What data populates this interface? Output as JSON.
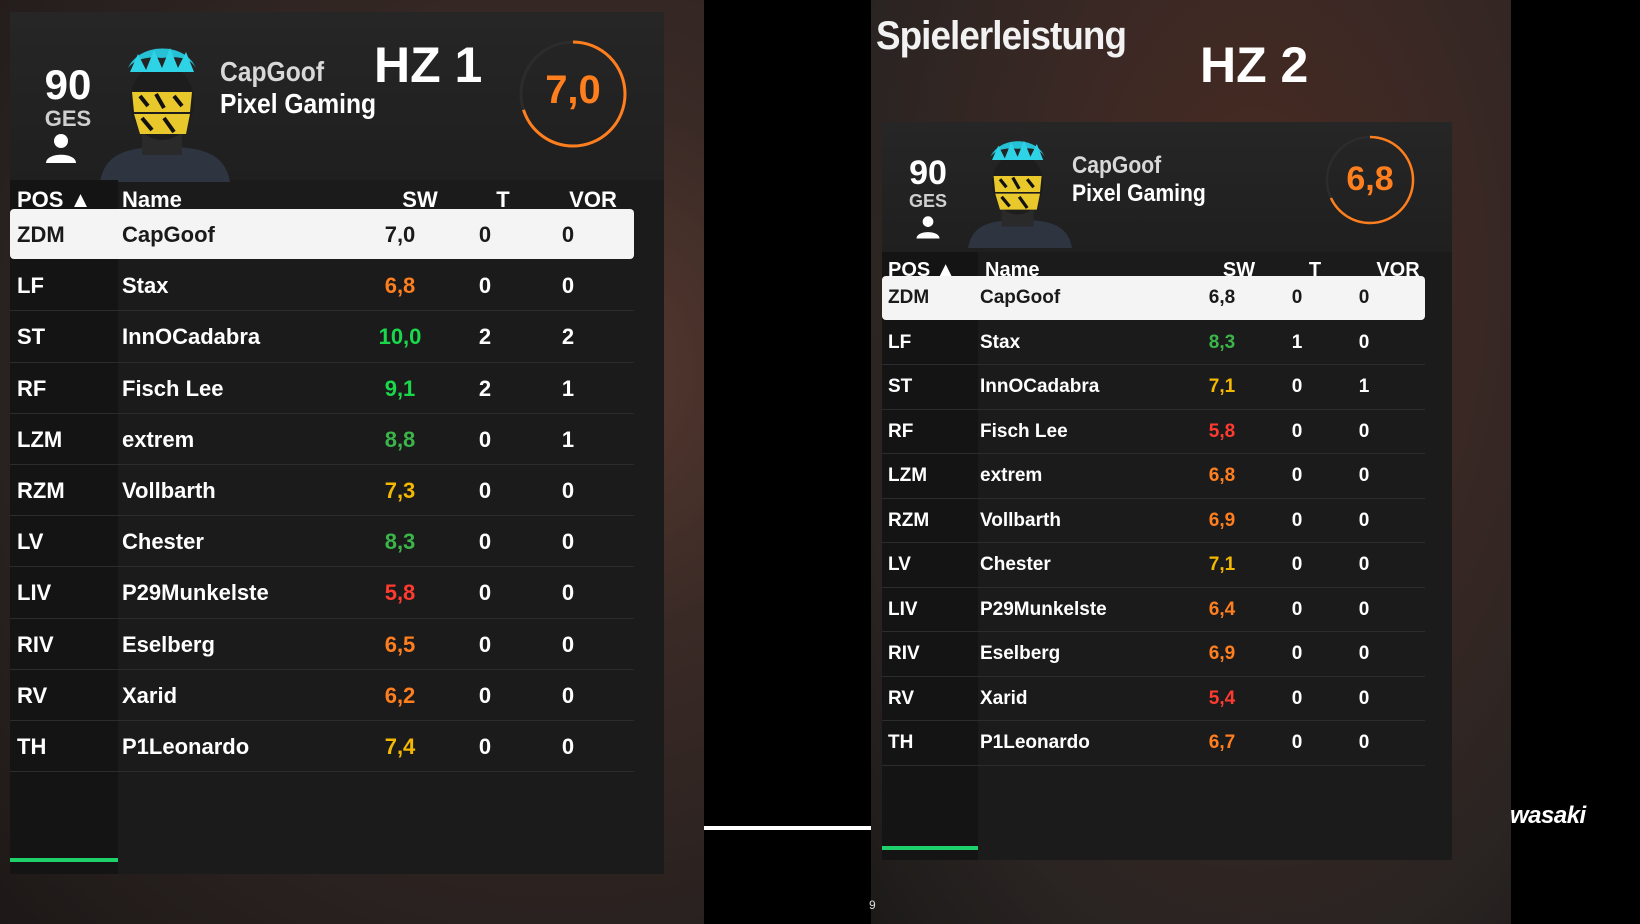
{
  "overlay": {
    "title": "Spielerleistung",
    "hz1_label": "HZ 1",
    "hz2_label": "HZ 2",
    "watermark": "wasaki",
    "page_number": "9"
  },
  "headers": {
    "pos": "POS ▲",
    "name": "Name",
    "sw": "SW",
    "t": "T",
    "vor": "VOR"
  },
  "colors": {
    "green_high": "#19d84a",
    "green": "#3bb54a",
    "yellow": "#f5b800",
    "orange": "#ff7f1e",
    "red": "#ff3b30",
    "accent_underline": "#1fd16b"
  },
  "half1": {
    "overall": "90",
    "overall_label": "GES",
    "player": "CapGoof",
    "club": "Pixel Gaming",
    "match_rating": "7,0",
    "match_rating_fraction": 0.7,
    "rows": [
      {
        "pos": "ZDM",
        "name": "CapGoof",
        "sw": "7,0",
        "t": "0",
        "vor": "0",
        "color": "#1a1a1a",
        "selected": true
      },
      {
        "pos": "LF",
        "name": "Stax",
        "sw": "6,8",
        "t": "0",
        "vor": "0",
        "color": "#ff7f1e"
      },
      {
        "pos": "ST",
        "name": "InnOCadabra",
        "sw": "10,0",
        "t": "2",
        "vor": "2",
        "color": "#19d84a"
      },
      {
        "pos": "RF",
        "name": "Fisch Lee",
        "sw": "9,1",
        "t": "2",
        "vor": "1",
        "color": "#19d84a"
      },
      {
        "pos": "LZM",
        "name": "extrem",
        "sw": "8,8",
        "t": "0",
        "vor": "1",
        "color": "#3bb54a"
      },
      {
        "pos": "RZM",
        "name": "Vollbarth",
        "sw": "7,3",
        "t": "0",
        "vor": "0",
        "color": "#f5b800"
      },
      {
        "pos": "LV",
        "name": "Chester",
        "sw": "8,3",
        "t": "0",
        "vor": "0",
        "color": "#3bb54a"
      },
      {
        "pos": "LIV",
        "name": "P29Munkelste",
        "sw": "5,8",
        "t": "0",
        "vor": "0",
        "color": "#ff3b30"
      },
      {
        "pos": "RIV",
        "name": "Eselberg",
        "sw": "6,5",
        "t": "0",
        "vor": "0",
        "color": "#ff7f1e"
      },
      {
        "pos": "RV",
        "name": "Xarid",
        "sw": "6,2",
        "t": "0",
        "vor": "0",
        "color": "#ff7f1e"
      },
      {
        "pos": "TH",
        "name": "P1Leonardo",
        "sw": "7,4",
        "t": "0",
        "vor": "0",
        "color": "#f5b800"
      }
    ]
  },
  "half2": {
    "overall": "90",
    "overall_label": "GES",
    "player": "CapGoof",
    "club": "Pixel Gaming",
    "match_rating": "6,8",
    "match_rating_fraction": 0.68,
    "rows": [
      {
        "pos": "ZDM",
        "name": "CapGoof",
        "sw": "6,8",
        "t": "0",
        "vor": "0",
        "color": "#1a1a1a",
        "selected": true
      },
      {
        "pos": "LF",
        "name": "Stax",
        "sw": "8,3",
        "t": "1",
        "vor": "0",
        "color": "#3bb54a"
      },
      {
        "pos": "ST",
        "name": "InnOCadabra",
        "sw": "7,1",
        "t": "0",
        "vor": "1",
        "color": "#f5b800"
      },
      {
        "pos": "RF",
        "name": "Fisch Lee",
        "sw": "5,8",
        "t": "0",
        "vor": "0",
        "color": "#ff3b30"
      },
      {
        "pos": "LZM",
        "name": "extrem",
        "sw": "6,8",
        "t": "0",
        "vor": "0",
        "color": "#ff7f1e"
      },
      {
        "pos": "RZM",
        "name": "Vollbarth",
        "sw": "6,9",
        "t": "0",
        "vor": "0",
        "color": "#ff7f1e"
      },
      {
        "pos": "LV",
        "name": "Chester",
        "sw": "7,1",
        "t": "0",
        "vor": "0",
        "color": "#f5b800"
      },
      {
        "pos": "LIV",
        "name": "P29Munkelste",
        "sw": "6,4",
        "t": "0",
        "vor": "0",
        "color": "#ff7f1e"
      },
      {
        "pos": "RIV",
        "name": "Eselberg",
        "sw": "6,9",
        "t": "0",
        "vor": "0",
        "color": "#ff7f1e"
      },
      {
        "pos": "RV",
        "name": "Xarid",
        "sw": "5,4",
        "t": "0",
        "vor": "0",
        "color": "#ff3b30"
      },
      {
        "pos": "TH",
        "name": "P1Leonardo",
        "sw": "6,7",
        "t": "0",
        "vor": "0",
        "color": "#ff7f1e"
      }
    ]
  }
}
